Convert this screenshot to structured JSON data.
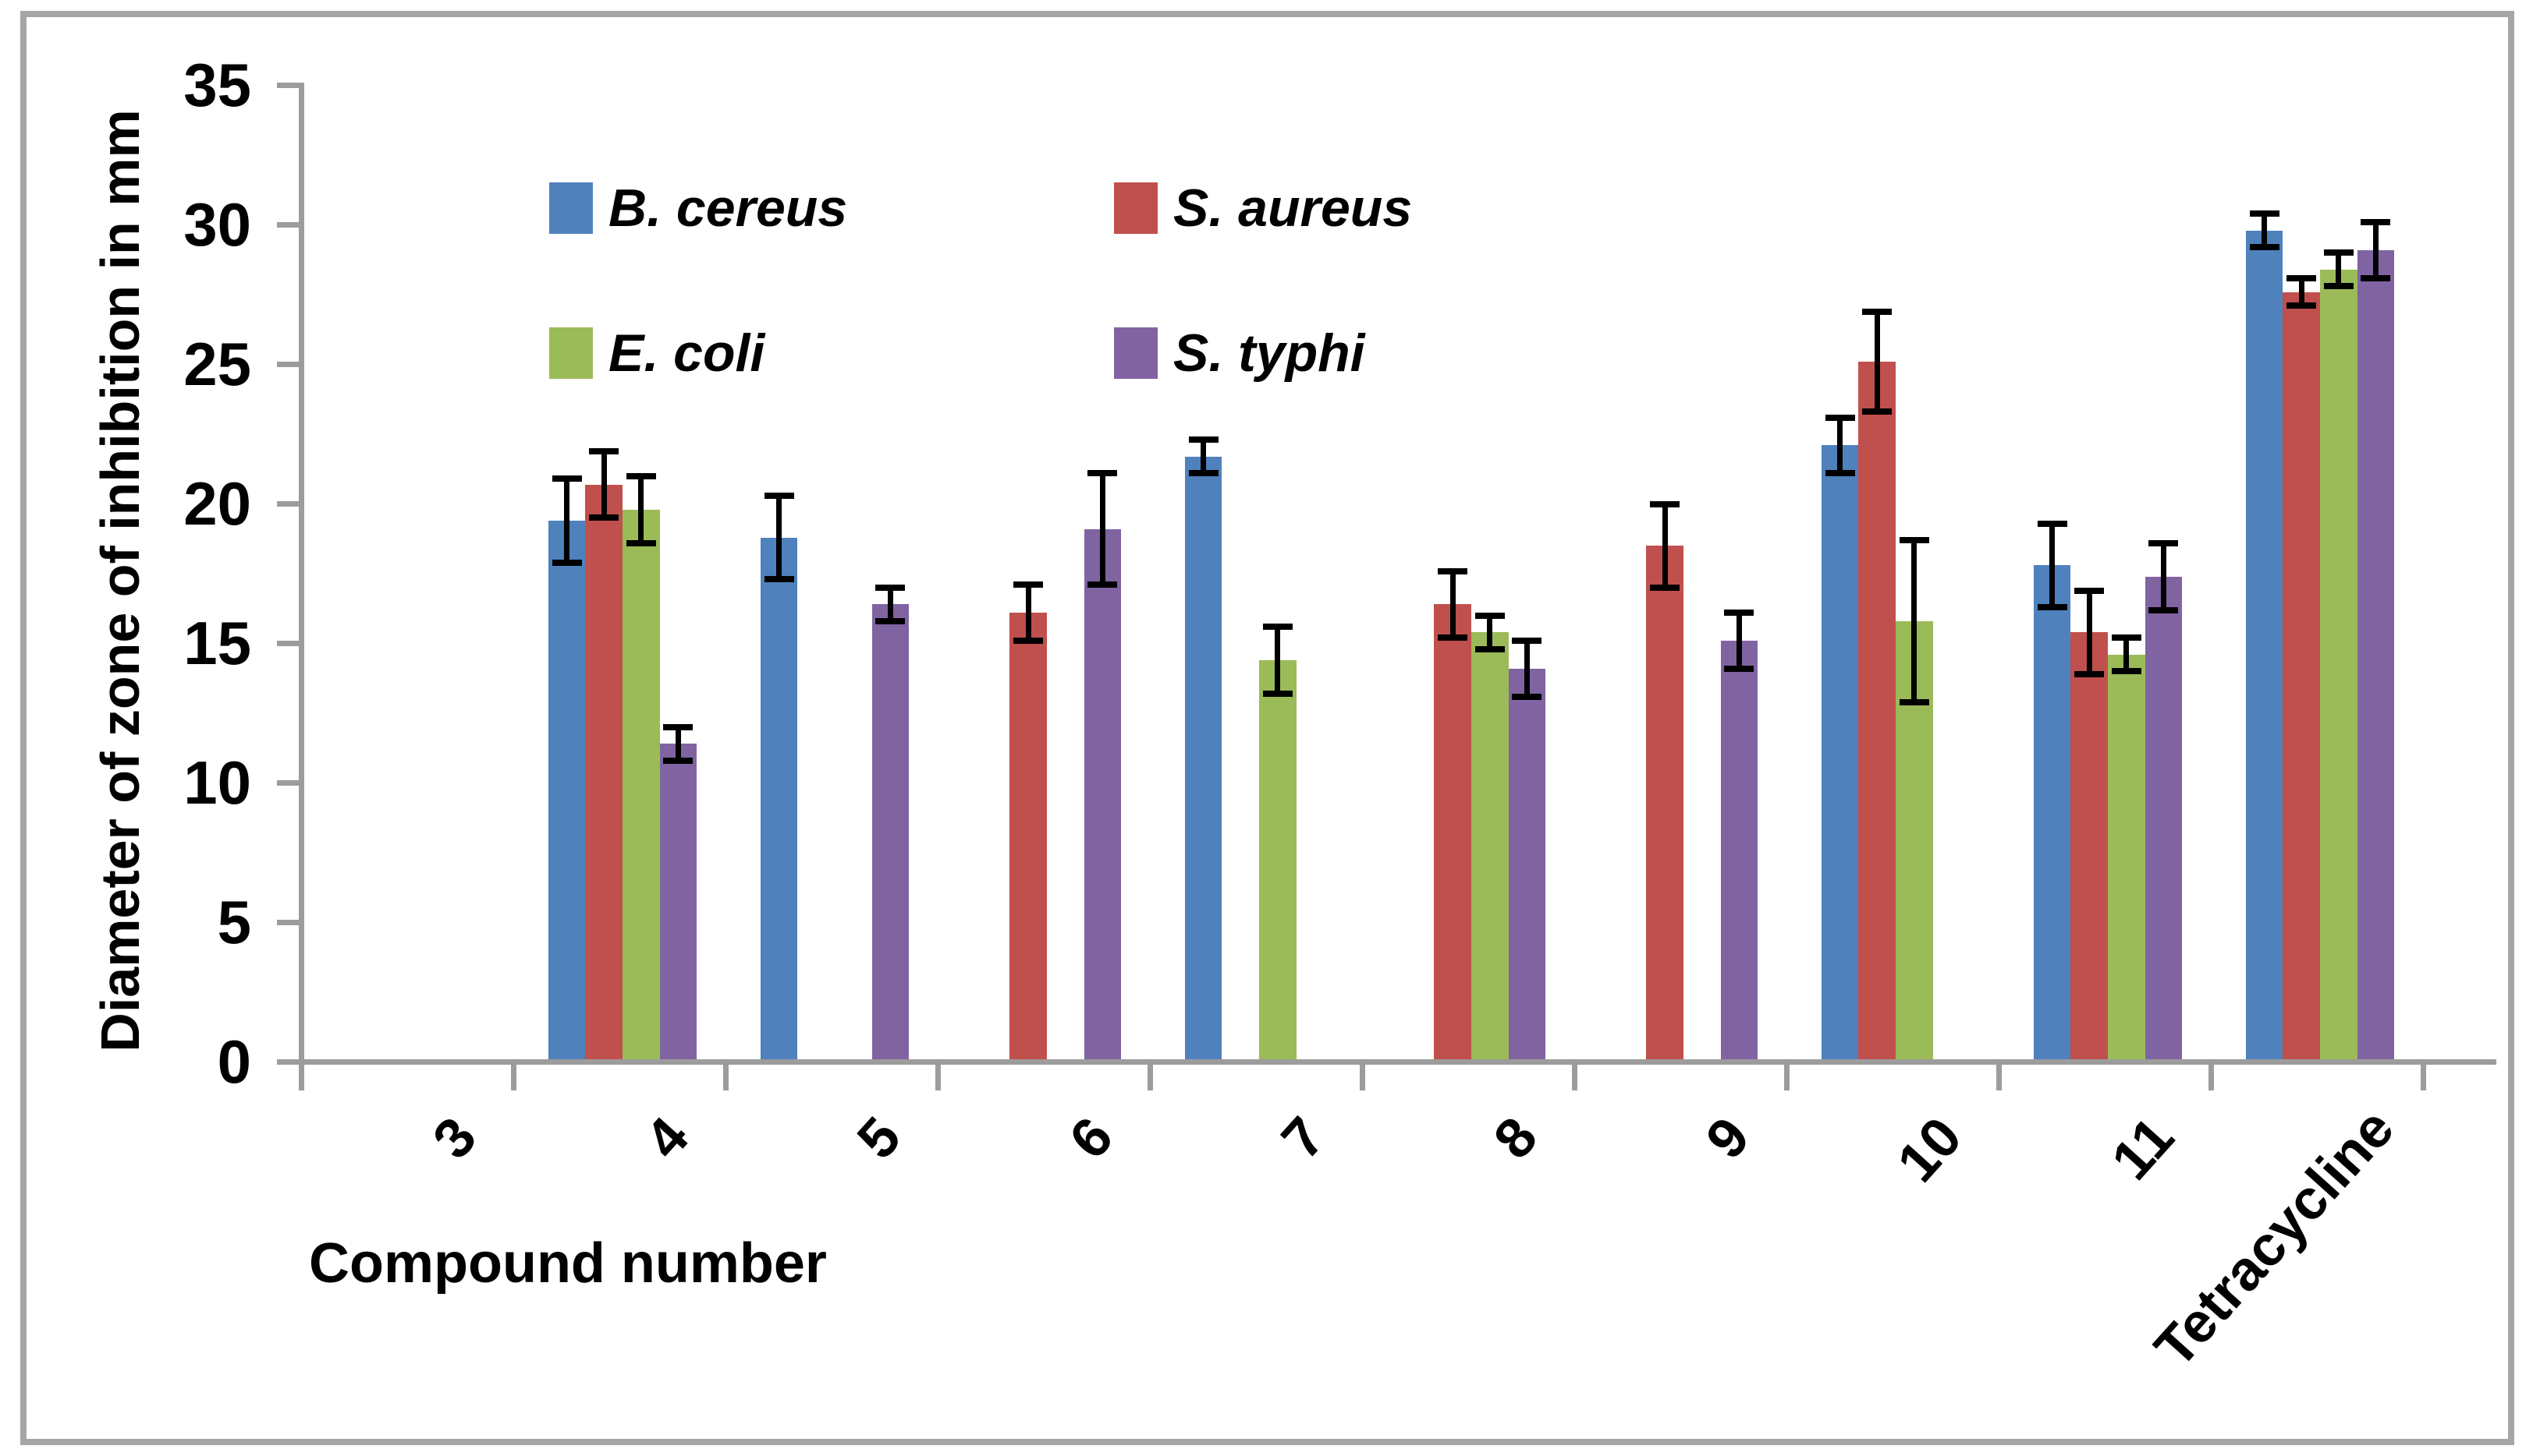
{
  "figure": {
    "border_color": "#a6a6a6",
    "axis_color": "#9c9c9c",
    "background": "#ffffff"
  },
  "chart_data": {
    "type": "bar",
    "title": "",
    "xlabel": "Compound number",
    "ylabel": "Diameter of zone of inhibition in mm",
    "categories": [
      "3",
      "4",
      "5",
      "6",
      "7",
      "8",
      "9",
      "10",
      "11",
      "Tetracycline"
    ],
    "y_ticks": [
      0,
      5,
      10,
      15,
      20,
      25,
      30,
      35
    ],
    "ylim": [
      0,
      35
    ],
    "grid": false,
    "error_bars": true,
    "legend_position": "inside-top, two columns, two rows",
    "series": [
      {
        "name": "B. cereus",
        "color": "#4F81BD",
        "values": [
          0,
          19.3,
          18.7,
          0,
          21.6,
          0,
          0,
          22.0,
          17.7,
          29.7
        ],
        "errors": [
          0,
          1.5,
          1.5,
          0,
          0.6,
          0,
          0,
          1.0,
          1.5,
          0.6
        ]
      },
      {
        "name": "S. aureus",
        "color": "#C0504D",
        "values": [
          0,
          20.6,
          0,
          16.0,
          0,
          16.3,
          18.4,
          25.0,
          15.3,
          27.5
        ],
        "errors": [
          0,
          1.2,
          0,
          1.0,
          0,
          1.2,
          1.5,
          1.8,
          1.5,
          0.5
        ]
      },
      {
        "name": "E. coli",
        "color": "#9BBB59",
        "values": [
          0,
          19.7,
          0,
          0,
          14.3,
          15.3,
          0,
          15.7,
          14.5,
          28.3
        ],
        "errors": [
          0,
          1.2,
          0,
          0,
          1.2,
          0.6,
          0,
          2.9,
          0.6,
          0.6
        ]
      },
      {
        "name": "S. typhi",
        "color": "#8064A2",
        "values": [
          0,
          11.3,
          16.3,
          19.0,
          0,
          14.0,
          15.0,
          0,
          17.3,
          29.0
        ],
        "errors": [
          0,
          0.6,
          0.6,
          2.0,
          0,
          1.0,
          1.0,
          0,
          1.2,
          1.0
        ]
      }
    ]
  }
}
